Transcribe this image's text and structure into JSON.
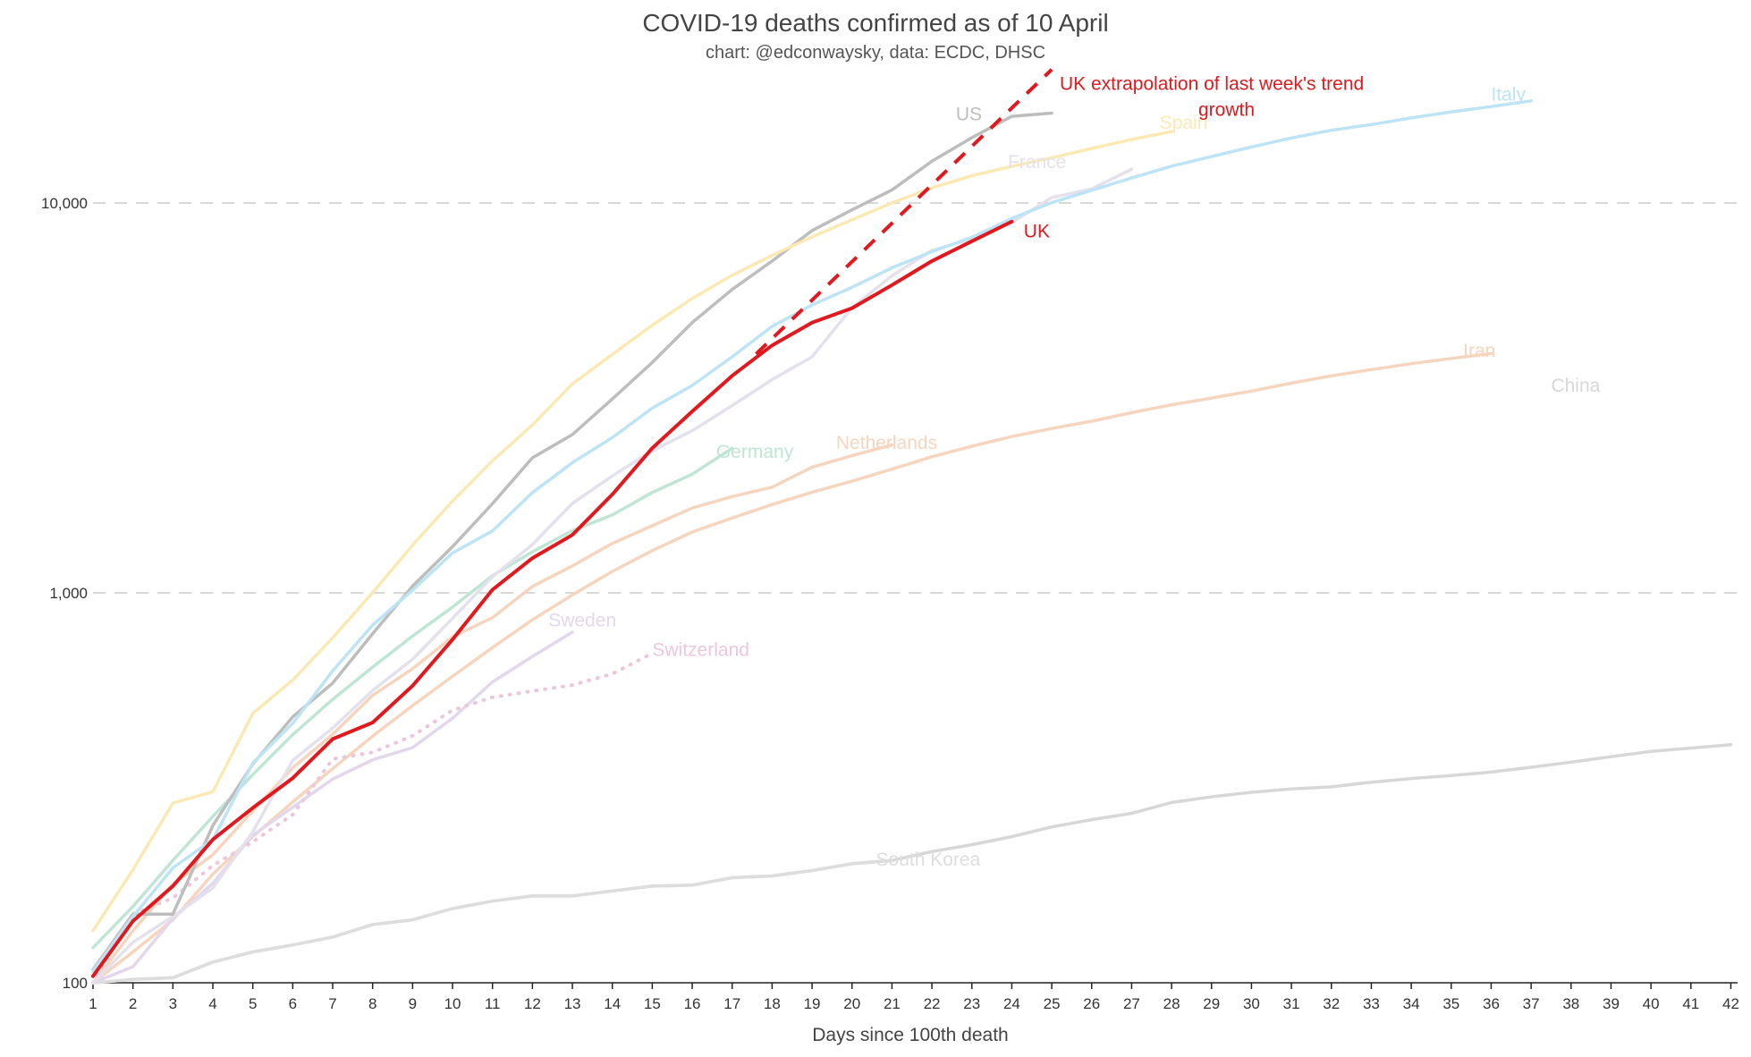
{
  "chart_data": {
    "type": "line",
    "title": "COVID-19 deaths confirmed as of 10 April",
    "subtitle": "chart: @edconwaysky, data: ECDC, DHSC",
    "xlabel": "Days since 100th death",
    "ylabel": "",
    "y_scale": "log",
    "ylim": [
      100,
      20000
    ],
    "xlim": [
      1,
      42
    ],
    "x_ticks": [
      1,
      2,
      3,
      4,
      5,
      6,
      7,
      8,
      9,
      10,
      11,
      12,
      13,
      14,
      15,
      16,
      17,
      18,
      19,
      20,
      21,
      22,
      23,
      24,
      25,
      26,
      27,
      28,
      29,
      30,
      31,
      32,
      33,
      34,
      35,
      36,
      37,
      38,
      39,
      40,
      41,
      42
    ],
    "y_ticks": [
      {
        "value": 100,
        "label": "100"
      },
      {
        "value": 1000,
        "label": "1,000"
      },
      {
        "value": 10000,
        "label": "10,000"
      }
    ],
    "grid": true,
    "series": [
      {
        "name": "China",
        "color": "#d7d7d7",
        "label_day": 37.5,
        "label_value": 3280,
        "values": [
          100,
          102,
          103,
          113,
          120,
          125,
          131,
          141,
          145,
          155,
          162,
          167,
          167,
          172,
          177,
          178,
          186,
          188,
          194,
          202,
          206,
          217,
          226,
          237,
          251,
          262,
          272,
          290,
          300,
          308,
          314,
          318,
          327,
          334,
          340,
          347,
          357,
          368,
          380,
          392,
          400,
          408
        ]
      },
      {
        "name": "South Korea",
        "color": "#dddddd",
        "label_day": 20.6,
        "label_value": 200,
        "values": [
          100,
          102,
          103,
          113,
          120,
          125,
          131,
          141,
          145,
          155,
          162,
          167,
          167,
          172,
          177,
          178,
          186,
          188,
          194,
          202,
          206
        ]
      },
      {
        "name": "Iran",
        "color": "#f6d5bf",
        "label_day": 35.3,
        "label_value": 4030,
        "values": [
          100,
          120,
          145,
          190,
          237,
          291,
          354,
          429,
          514,
          611,
          724,
          853,
          988,
          1135,
          1284,
          1433,
          1556,
          1685,
          1812,
          1934,
          2077,
          2234,
          2378,
          2517,
          2640,
          2757,
          2898,
          3036,
          3160,
          3294,
          3452,
          3603,
          3739,
          3872,
          3993,
          4110
        ]
      },
      {
        "name": "Netherlands",
        "color": "#f6d5bf",
        "label_day": 19.6,
        "label_value": 2340,
        "values": [
          100,
          136,
          179,
          213,
          276,
          356,
          434,
          546,
          639,
          771,
          864,
          1039,
          1173,
          1339,
          1487,
          1651,
          1766,
          1867,
          2101,
          2248,
          2396
        ]
      },
      {
        "name": "Sweden",
        "color": "#e3d7ec",
        "label_day": 12.4,
        "label_value": 820,
        "values": [
          100,
          110,
          146,
          180,
          239,
          282,
          333,
          373,
          401,
          477,
          591,
          687,
          793
        ]
      },
      {
        "name": "Switzerland",
        "color": "#ecc6dc",
        "dash": true,
        "label_day": 15,
        "label_value": 690,
        "values": [
          100,
          150,
          165,
          200,
          230,
          270,
          375,
          390,
          430,
          500,
          540,
          560,
          580,
          620,
          700
        ]
      },
      {
        "name": "Germany",
        "color": "#bfe5d5",
        "label_day": 16.6,
        "label_value": 2220,
        "values": [
          123,
          157,
          206,
          267,
          342,
          433,
          533,
          645,
          775,
          920,
          1107,
          1275,
          1444,
          1584,
          1810,
          2016,
          2349
        ]
      },
      {
        "name": "France",
        "color": "#e4e0ec",
        "label_day": 23.9,
        "label_value": 12300,
        "values": [
          100,
          127,
          148,
          175,
          244,
          372,
          450,
          562,
          676,
          860,
          1100,
          1331,
          1696,
          1995,
          2314,
          2606,
          3024,
          3523,
          4032,
          5387,
          6507,
          7560,
          8078,
          8911,
          10328,
          10869,
          12210
        ]
      },
      {
        "name": "US",
        "color": "#bdbdbd",
        "label_day": 22.6,
        "label_value": 16300,
        "values": [
          108,
          150,
          150,
          253,
          364,
          481,
          587,
          786,
          1041,
          1313,
          1694,
          2221,
          2547,
          3143,
          3900,
          4935,
          6000,
          7100,
          8500,
          9600,
          10800,
          12800,
          14700,
          16680,
          17000
        ]
      },
      {
        "name": "Spain",
        "color": "#fbe9b3",
        "label_day": 27.7,
        "label_value": 15500,
        "values": [
          136,
          195,
          289,
          309,
          491,
          598,
          767,
          1002,
          1326,
          1720,
          2182,
          2696,
          3434,
          4089,
          4858,
          5690,
          6528,
          7340,
          8189,
          9053,
          10003,
          10935,
          11744,
          12418,
          13055,
          13798,
          14555,
          15238
        ]
      },
      {
        "name": "Italy",
        "color": "#bde4f4",
        "label_day": 36.0,
        "label_value": 18300,
        "values": [
          107,
          148,
          197,
          233,
          366,
          463,
          631,
          827,
          1016,
          1266,
          1441,
          1809,
          2158,
          2503,
          2978,
          3405,
          4032,
          4825,
          5476,
          6077,
          6820,
          7503,
          8165,
          9134,
          10023,
          10779,
          11591,
          12428,
          13155,
          13915,
          14681,
          15362,
          15887,
          16523,
          17127,
          17669,
          18279
        ]
      },
      {
        "name": "UK",
        "color": "#e0191f",
        "width": 4,
        "label_day": 24.3,
        "label_value": 8150,
        "values": [
          104,
          144,
          177,
          233,
          281,
          335,
          422,
          465,
          578,
          759,
          1019,
          1228,
          1408,
          1789,
          2352,
          2921,
          3605,
          4313,
          4934,
          5373,
          6159,
          7097,
          7978,
          8958
        ]
      },
      {
        "name": "UK extrapolation of last week's trend growth",
        "color": "#e0191f",
        "width": 4,
        "dash": true,
        "label_day": 25.2,
        "label_value": 19500,
        "x": [
          17.6,
          25
        ],
        "values": [
          4100,
          22000
        ]
      }
    ]
  }
}
